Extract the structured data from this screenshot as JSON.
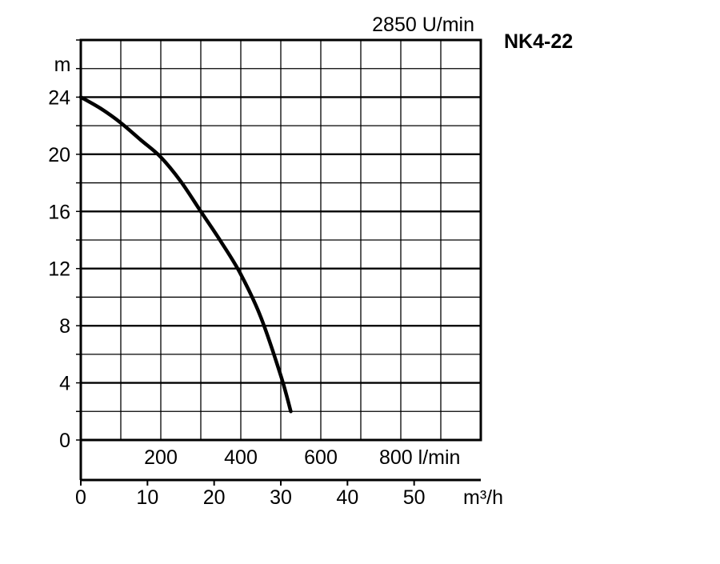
{
  "chart_data": {
    "type": "line",
    "title": "NK4-22",
    "subtitle": "2850 U/min",
    "ylabel": "m",
    "x_primary_unit": "l/min",
    "x_secondary_unit": "m³/h",
    "ylim": [
      0,
      24
    ],
    "xlim_lmin": [
      0,
      1000
    ],
    "y_ticks": [
      0,
      4,
      8,
      12,
      16,
      20,
      24
    ],
    "x_ticks_lmin": [
      200,
      400,
      600,
      800
    ],
    "x_tick_labels_lmin": [
      "200",
      "400",
      "600",
      "800 l/min"
    ],
    "x_ticks_m3h": [
      0,
      10,
      20,
      30,
      40,
      50
    ],
    "x_tick_labels_m3h": [
      "0",
      "10",
      "20",
      "30",
      "40",
      "50"
    ],
    "grid": true,
    "series": [
      {
        "x": [
          0,
          50,
          100,
          150,
          200,
          250,
          300,
          350,
          400,
          450,
          500,
          525
        ],
        "y": [
          24,
          23.2,
          22.2,
          21,
          19.8,
          18.1,
          16,
          13.9,
          11.6,
          8.6,
          4.5,
          2
        ]
      }
    ]
  }
}
